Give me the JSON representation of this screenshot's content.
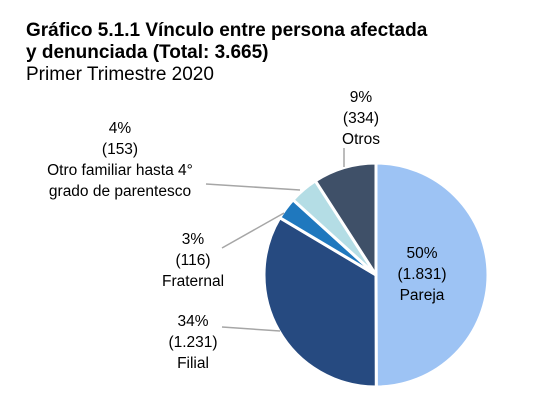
{
  "title_line1": "Gráfico 5.1.1 Vínculo entre persona afectada",
  "title_line2": "y denunciada (Total: 3.665)",
  "subtitle": "Primer Trimestre 2020",
  "chart_data": {
    "type": "pie",
    "title": "Gráfico 5.1.1 Vínculo entre persona afectada y denunciada (Total: 3.665)",
    "subtitle": "Primer Trimestre 2020",
    "total": 3665,
    "start": "12 o'clock, clockwise",
    "legend": "none",
    "slices": [
      {
        "name": "Pareja",
        "value": 1831,
        "percent": "50%",
        "count": "(1.831)",
        "label": [
          "Pareja"
        ],
        "color": "#9DC3F4"
      },
      {
        "name": "Filial",
        "value": 1231,
        "percent": "34%",
        "count": "(1.231)",
        "label": [
          "Filial"
        ],
        "color": "#264A80"
      },
      {
        "name": "Fraternal",
        "value": 116,
        "percent": "3%",
        "count": "(116)",
        "label": [
          "Fraternal"
        ],
        "color": "#1F78BE"
      },
      {
        "name": "Otro familiar hasta 4° grado de parentesco",
        "value": 153,
        "percent": "4%",
        "count": "(153)",
        "label": [
          "Otro familiar hasta 4°",
          "grado de parentesco"
        ],
        "color": "#B4DDE5"
      },
      {
        "name": "Otros",
        "value": 334,
        "percent": "9%",
        "count": "(334)",
        "label": [
          "Otros"
        ],
        "color": "#3F5068"
      }
    ]
  }
}
